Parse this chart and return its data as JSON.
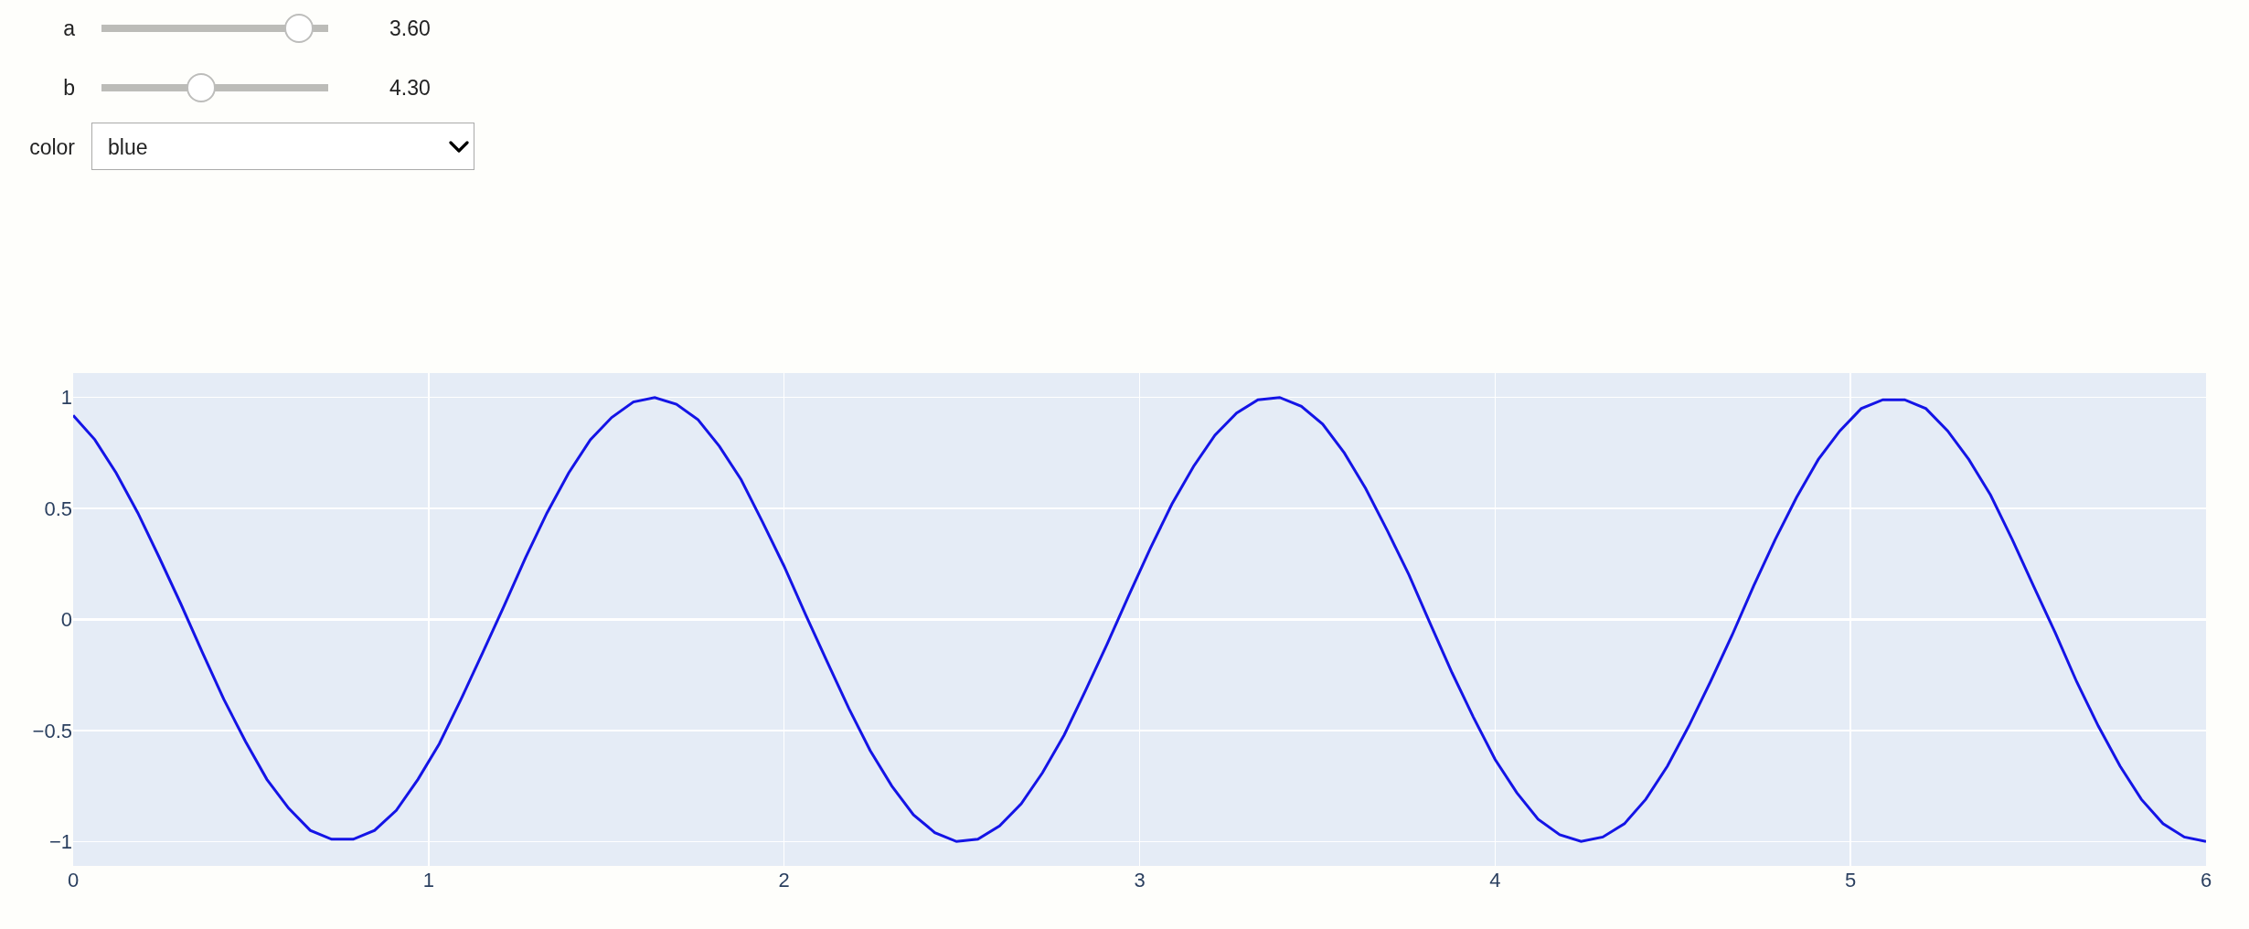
{
  "chart_data": {
    "type": "line",
    "x": [
      0,
      0.061,
      0.121,
      0.182,
      0.242,
      0.303,
      0.364,
      0.424,
      0.485,
      0.545,
      0.606,
      0.667,
      0.727,
      0.788,
      0.848,
      0.909,
      0.97,
      1.03,
      1.091,
      1.152,
      1.212,
      1.273,
      1.333,
      1.394,
      1.455,
      1.515,
      1.576,
      1.636,
      1.697,
      1.758,
      1.818,
      1.879,
      1.939,
      2.0,
      2.061,
      2.121,
      2.182,
      2.242,
      2.303,
      2.364,
      2.424,
      2.485,
      2.545,
      2.606,
      2.667,
      2.727,
      2.788,
      2.848,
      2.909,
      2.97,
      3.03,
      3.091,
      3.152,
      3.212,
      3.273,
      3.333,
      3.394,
      3.455,
      3.515,
      3.576,
      3.636,
      3.697,
      3.758,
      3.818,
      3.879,
      3.939,
      4.0,
      4.061,
      4.121,
      4.182,
      4.242,
      4.303,
      4.364,
      4.424,
      4.485,
      4.545,
      4.606,
      4.667,
      4.727,
      4.788,
      4.848,
      4.909,
      4.97,
      5.03,
      5.091,
      5.152,
      5.212,
      5.273,
      5.333,
      5.394,
      5.455,
      5.515,
      5.576,
      5.636,
      5.697,
      5.758,
      5.818,
      5.879,
      5.939,
      6
    ],
    "values": [
      0.92,
      0.81,
      0.66,
      0.48,
      0.28,
      0.07,
      -0.15,
      -0.36,
      -0.55,
      -0.72,
      -0.85,
      -0.95,
      -0.99,
      -0.99,
      -0.95,
      -0.86,
      -0.72,
      -0.56,
      -0.36,
      -0.15,
      0.06,
      0.28,
      0.48,
      0.66,
      0.81,
      0.91,
      0.98,
      1.0,
      0.97,
      0.9,
      0.78,
      0.63,
      0.44,
      0.24,
      0.02,
      -0.19,
      -0.4,
      -0.59,
      -0.75,
      -0.88,
      -0.96,
      -1.0,
      -0.99,
      -0.93,
      -0.83,
      -0.69,
      -0.52,
      -0.32,
      -0.11,
      0.11,
      0.32,
      0.52,
      0.69,
      0.83,
      0.93,
      0.99,
      1.0,
      0.96,
      0.88,
      0.75,
      0.59,
      0.4,
      0.2,
      -0.02,
      -0.24,
      -0.44,
      -0.63,
      -0.78,
      -0.9,
      -0.97,
      -1.0,
      -0.98,
      -0.92,
      -0.81,
      -0.66,
      -0.48,
      -0.28,
      -0.07,
      0.15,
      0.36,
      0.55,
      0.72,
      0.85,
      0.95,
      0.99,
      0.99,
      0.95,
      0.85,
      0.72,
      0.56,
      0.36,
      0.15,
      -0.06,
      -0.28,
      -0.48,
      -0.66,
      -0.81,
      -0.92,
      -0.98,
      -1.0
    ],
    "color": "#1414e6",
    "line_style": "solid",
    "xlim": [
      0,
      6
    ],
    "xticks": [
      0,
      1,
      2,
      3,
      4,
      5,
      6
    ],
    "ylim": [
      -1.11,
      1.11
    ],
    "yticks": [
      -1,
      -0.5,
      0,
      0.5,
      1
    ],
    "grid": true,
    "annotations": [
      "a",
      "3.60",
      "b",
      "4.30",
      "color",
      "blue"
    ]
  }
}
